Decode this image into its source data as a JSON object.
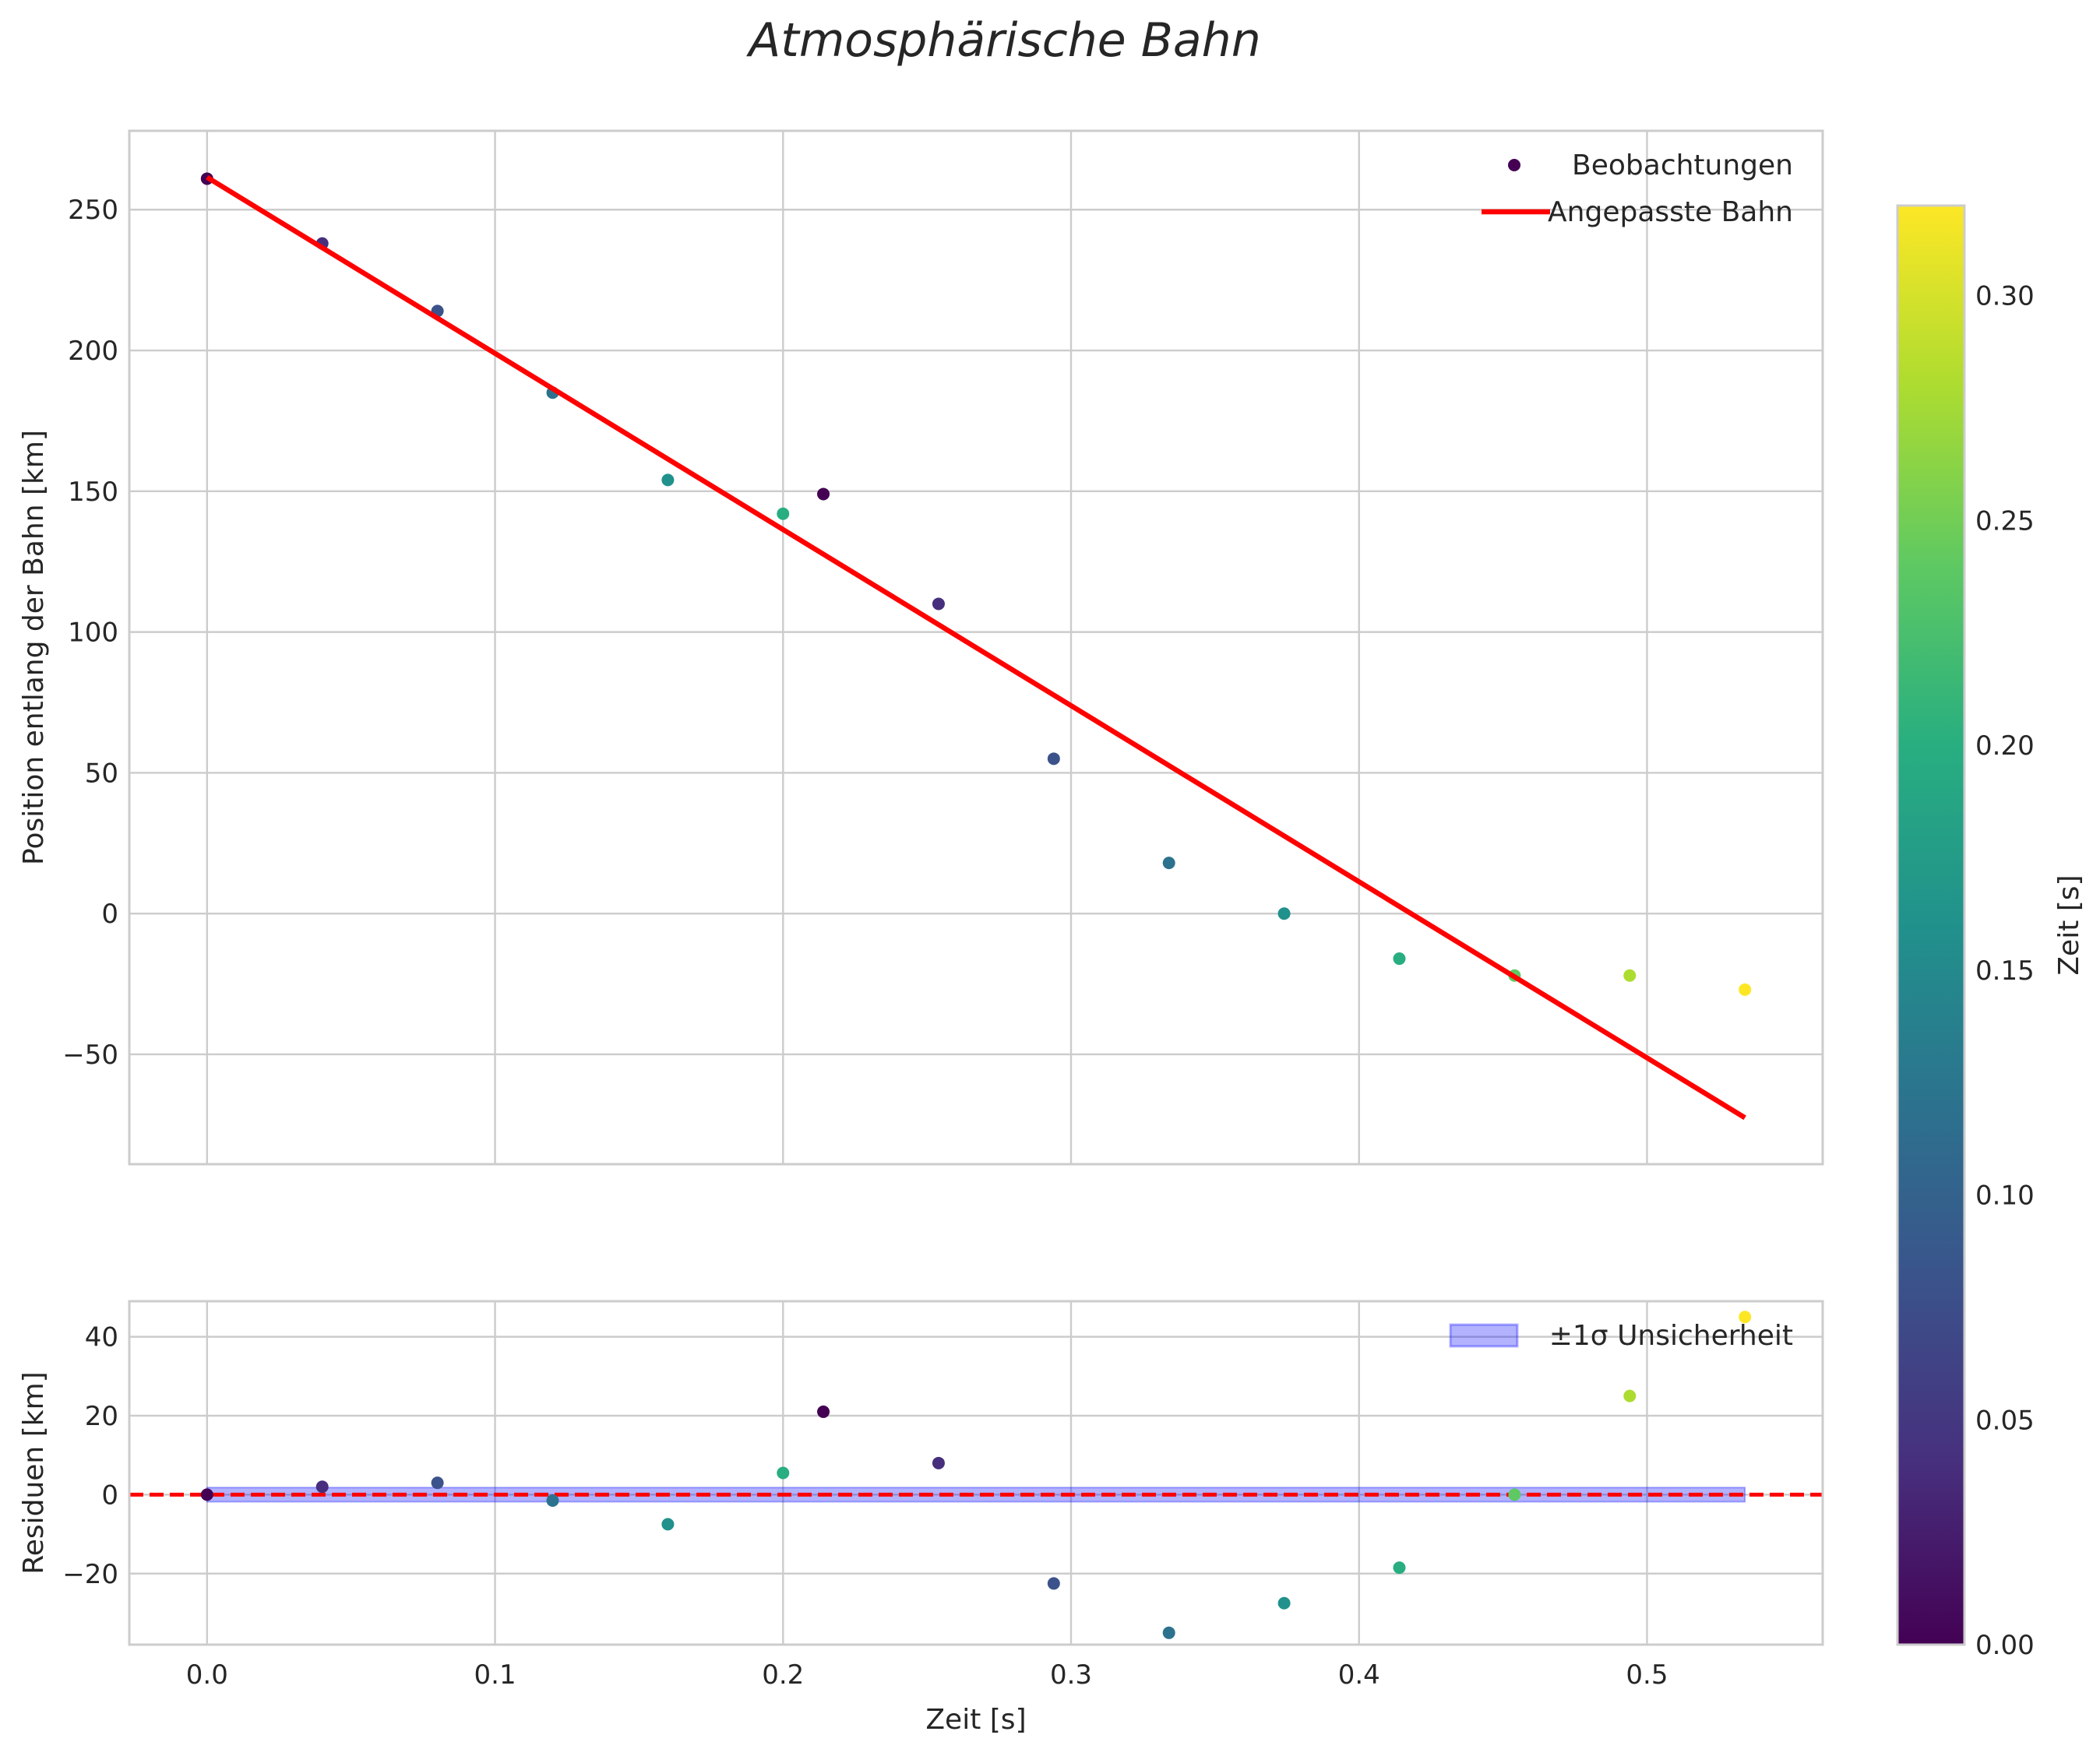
{
  "chart_data": [
    {
      "id": "main",
      "type": "scatter",
      "title": "Atmosphärische Bahn",
      "xlabel": "",
      "ylabel": "Position entlang der Bahn [km]",
      "xlim": [
        -0.027,
        0.561
      ],
      "ylim": [
        -89,
        278
      ],
      "xticks": [
        0.0,
        0.1,
        0.2,
        0.3,
        0.4,
        0.5
      ],
      "xtick_labels": [
        "",
        "",
        "",
        "",
        "",
        ""
      ],
      "yticks": [
        -50,
        0,
        50,
        100,
        150,
        200,
        250
      ],
      "ytick_labels": [
        "−50",
        "0",
        "50",
        "100",
        "150",
        "200",
        "250"
      ],
      "grid": true,
      "legend": {
        "placement": "top-right",
        "entries": [
          {
            "label": "Beobachtungen",
            "kind": "marker",
            "color": "#440154"
          },
          {
            "label": "Angepasste Bahn",
            "kind": "line",
            "color": "#ff0000"
          }
        ]
      },
      "series": [
        {
          "name": "Beobachtungen",
          "kind": "scatter",
          "x": [
            0.0,
            0.04,
            0.08,
            0.12,
            0.16,
            0.2,
            0.214,
            0.254,
            0.294,
            0.334,
            0.374,
            0.414,
            0.454,
            0.494,
            0.534
          ],
          "y": [
            261,
            238,
            214,
            185,
            154,
            142,
            149,
            110,
            55,
            18,
            0,
            -16,
            -22,
            -22,
            -27
          ],
          "t": [
            0.0,
            0.04,
            0.08,
            0.12,
            0.16,
            0.2,
            0.0,
            0.04,
            0.08,
            0.12,
            0.16,
            0.2,
            0.24,
            0.28,
            0.32
          ]
        },
        {
          "name": "Angepasste Bahn",
          "kind": "line",
          "color": "#ff0000",
          "x": [
            0.0,
            0.534
          ],
          "y": [
            261.5,
            -72.5
          ]
        }
      ]
    },
    {
      "id": "residuals",
      "type": "scatter",
      "xlabel": "Zeit [s]",
      "ylabel": "Residuen [km]",
      "xlim": [
        -0.027,
        0.561
      ],
      "ylim": [
        -38,
        49
      ],
      "xticks": [
        0.0,
        0.1,
        0.2,
        0.3,
        0.4,
        0.5
      ],
      "xtick_labels": [
        "0.0",
        "0.1",
        "0.2",
        "0.3",
        "0.4",
        "0.5"
      ],
      "yticks": [
        -20,
        0,
        20,
        40
      ],
      "ytick_labels": [
        "−20",
        "0",
        "20",
        "40"
      ],
      "grid": true,
      "legend": {
        "placement": "top-right",
        "entries": [
          {
            "label": "±1σ Unsicherheit",
            "kind": "patch",
            "color": "#0000ff"
          }
        ]
      },
      "zero_line": {
        "y": 0,
        "color": "#ff0000",
        "style": "dashed"
      },
      "band": {
        "name": "±1σ Unsicherheit",
        "x": [
          0.0,
          0.534
        ],
        "lower": -1.8,
        "upper": 1.8,
        "color": "#0000ff"
      },
      "series": [
        {
          "name": "Residuen",
          "kind": "scatter",
          "x": [
            0.0,
            0.04,
            0.08,
            0.12,
            0.16,
            0.2,
            0.214,
            0.254,
            0.294,
            0.334,
            0.374,
            0.414,
            0.454,
            0.494,
            0.534
          ],
          "y": [
            0,
            2,
            3,
            -1.5,
            -7.5,
            5.5,
            21,
            8,
            -22.5,
            -35,
            -27.5,
            -18.5,
            0,
            25,
            45
          ],
          "t": [
            0.0,
            0.04,
            0.08,
            0.12,
            0.16,
            0.2,
            0.0,
            0.04,
            0.08,
            0.12,
            0.16,
            0.2,
            0.24,
            0.28,
            0.32
          ]
        }
      ]
    }
  ],
  "colorbar": {
    "label": "Zeit [s]",
    "colormap": "viridis",
    "range": [
      0.0,
      0.32
    ],
    "ticks": [
      0.0,
      0.05,
      0.1,
      0.15,
      0.2,
      0.25,
      0.3
    ],
    "tick_labels": [
      "0.00",
      "0.05",
      "0.10",
      "0.15",
      "0.20",
      "0.25",
      "0.30"
    ],
    "stops": [
      "#440154",
      "#472f7d",
      "#3b528b",
      "#2c728e",
      "#21918c",
      "#28ae80",
      "#5ec962",
      "#addc30",
      "#fde725"
    ]
  }
}
